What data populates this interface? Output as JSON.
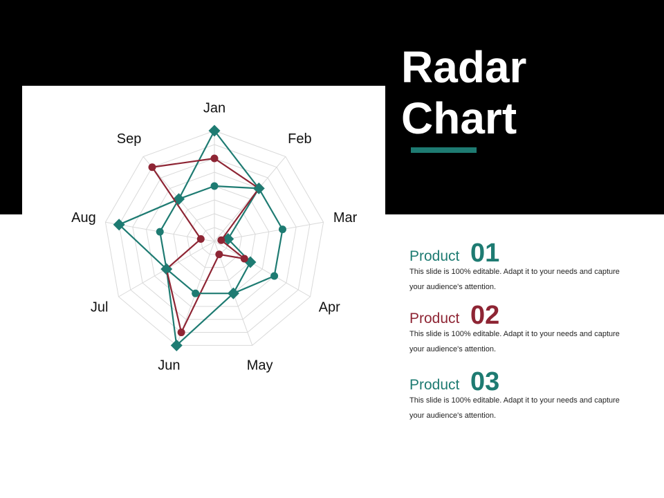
{
  "title_line1": "Radar",
  "title_line2": "Chart",
  "colors": {
    "teal": "#1e7b72",
    "red": "#8e2534",
    "grid": "#d9d9d9"
  },
  "products": [
    {
      "word": "Product",
      "number": "01",
      "color": "#1e7b72",
      "desc": "This slide is 100% editable. Adapt it to your needs and capture your audience's attention."
    },
    {
      "word": "Product",
      "number": "02",
      "color": "#8e2534",
      "desc": "This slide is 100% editable. Adapt it to your needs and capture your audience's attention."
    },
    {
      "word": "Product",
      "number": "03",
      "color": "#1e7b72",
      "desc": "This slide is 100% editable. Adapt it to your needs and capture your audience's attention."
    }
  ],
  "chart_data": {
    "type": "radar",
    "categories": [
      "Jan",
      "Feb",
      "Mar",
      "Apr",
      "May",
      "Jun",
      "Jul",
      "Aug",
      "Sep"
    ],
    "rmax": 8,
    "grid_rings": 8,
    "series": [
      {
        "color": "#1e7b72",
        "marker": "diamond",
        "values": [
          8,
          5,
          1,
          3,
          4,
          8,
          4,
          7,
          4
        ]
      },
      {
        "color": "#8e2534",
        "marker": "circle",
        "values": [
          6,
          5,
          0.5,
          2.5,
          1,
          7,
          4,
          1,
          7
        ]
      },
      {
        "color": "#1e7b72",
        "marker": "circle",
        "values": [
          4,
          5,
          5,
          5,
          4,
          4,
          4,
          4,
          4
        ]
      }
    ]
  }
}
